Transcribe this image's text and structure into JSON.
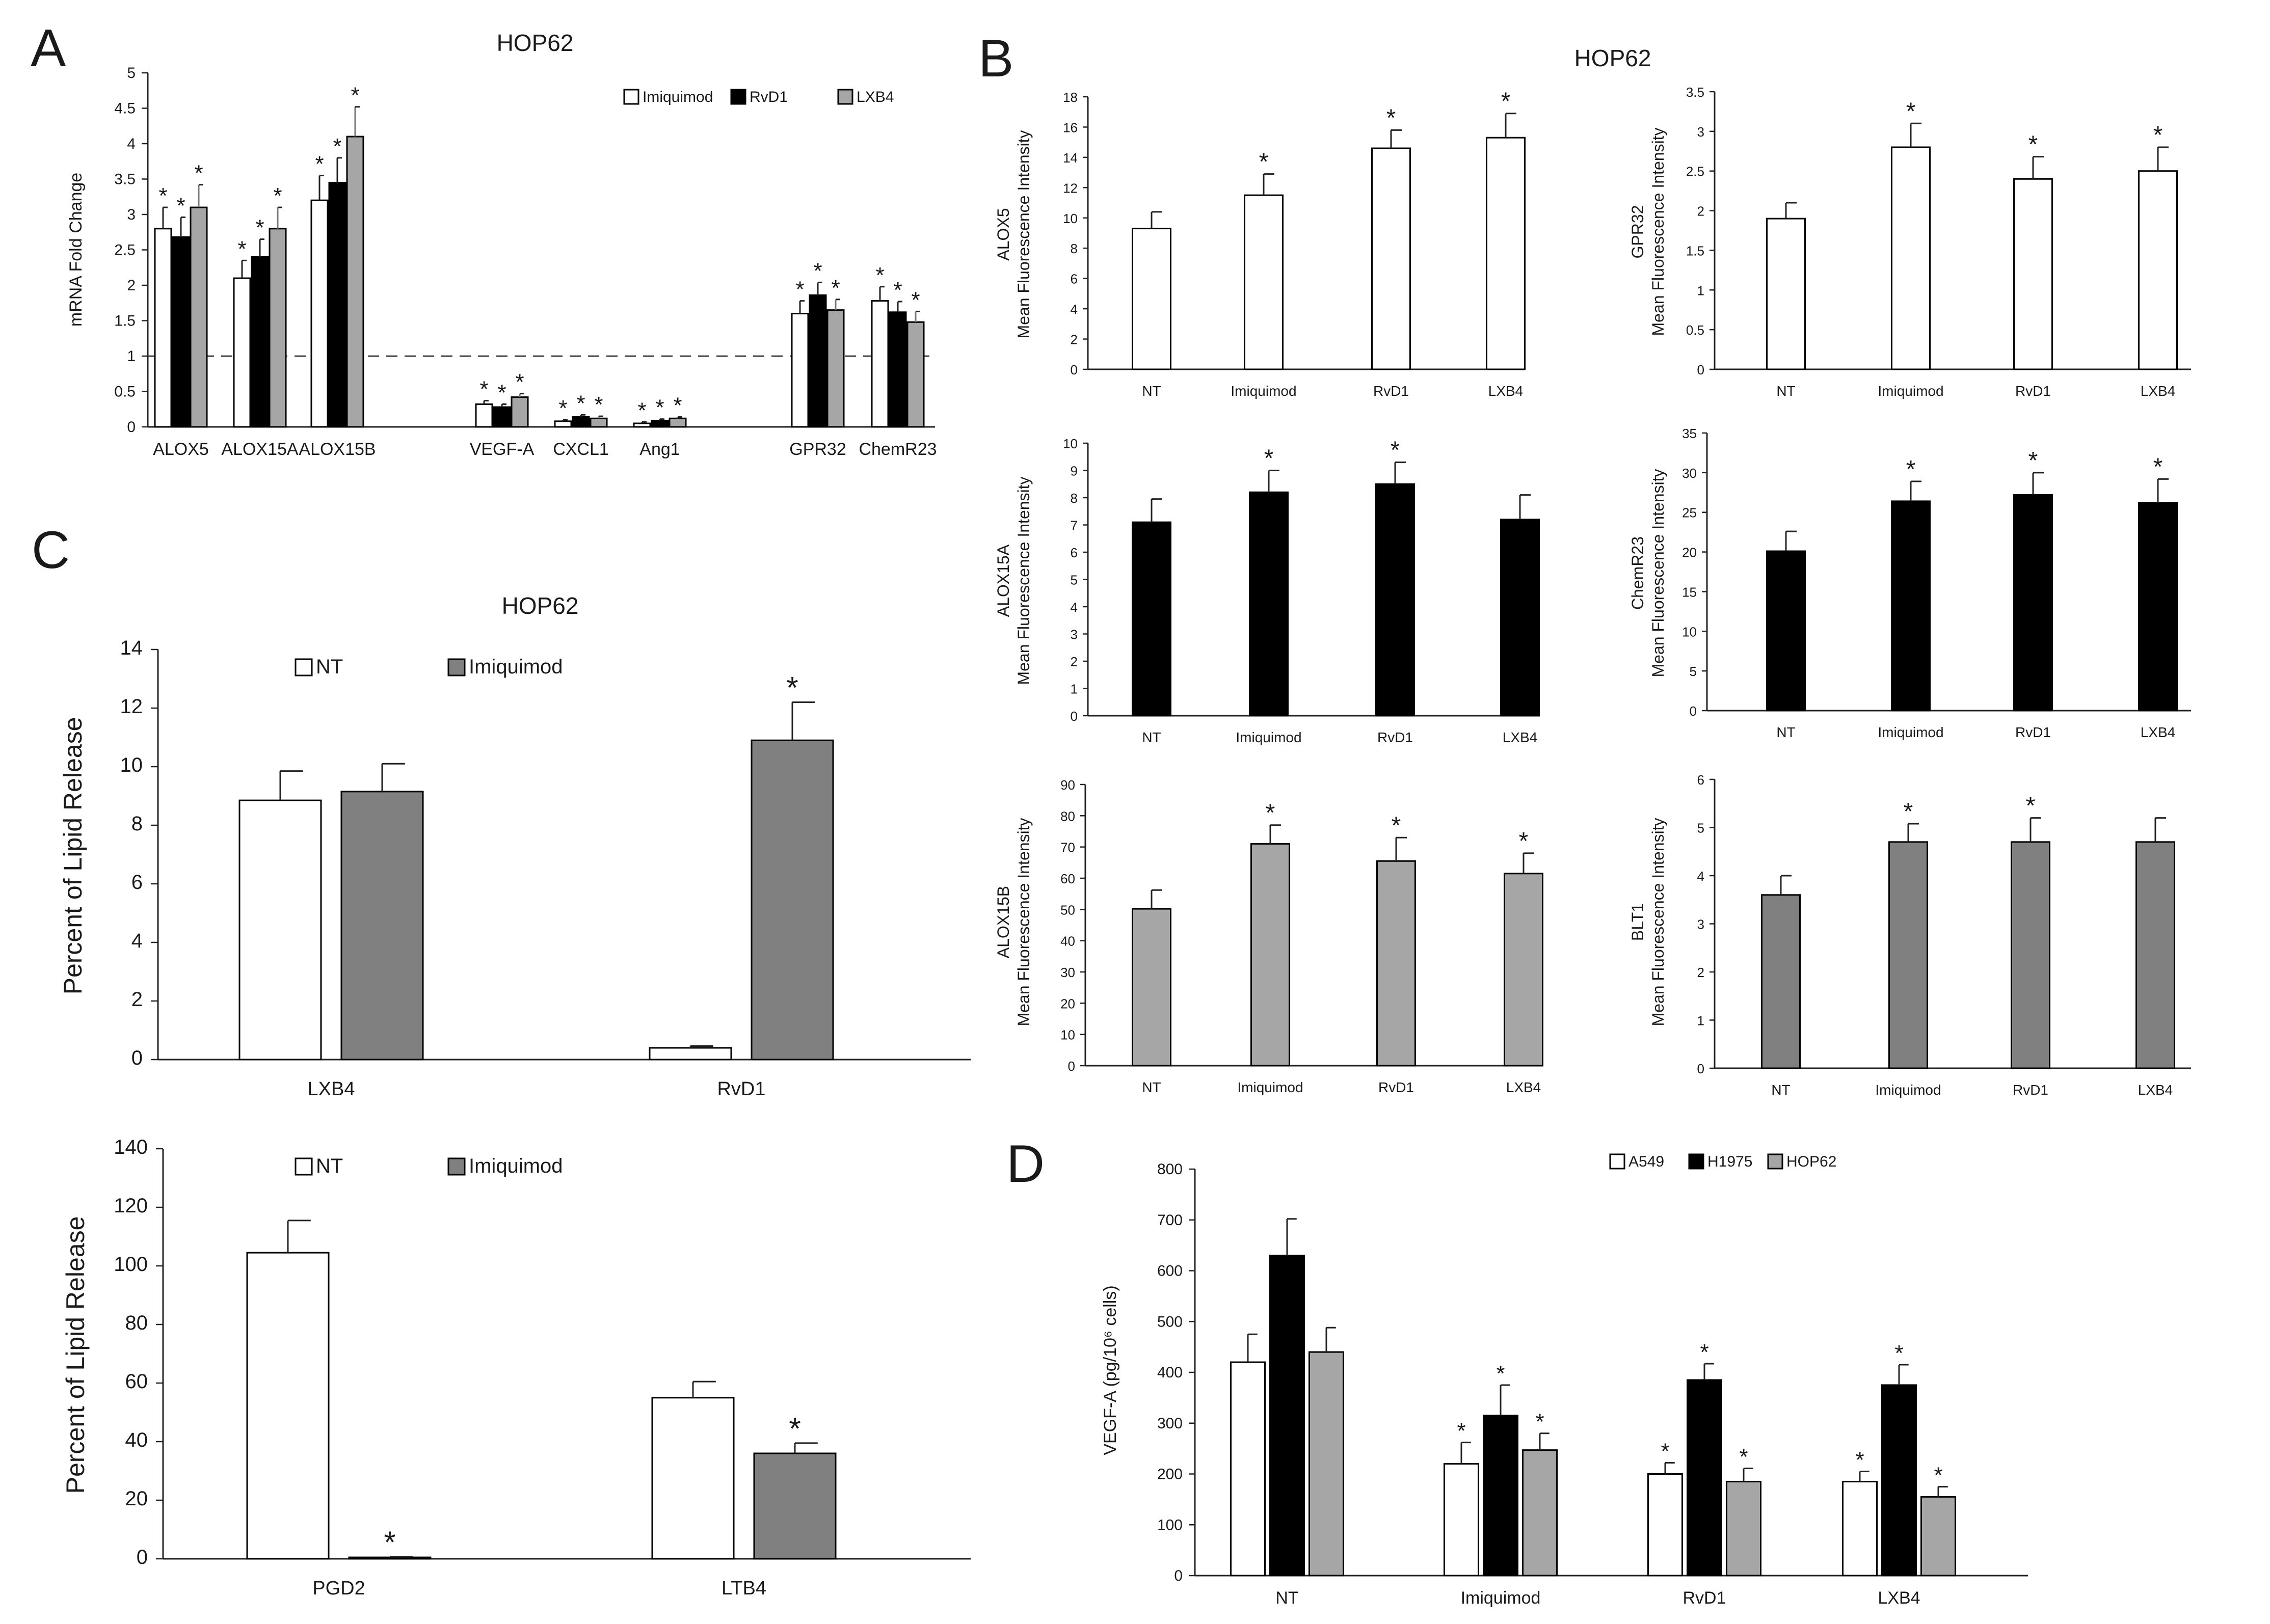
{
  "panels": {
    "A": "A",
    "B": "B",
    "C": "C",
    "D": "D"
  },
  "colors": {
    "white": "#ffffff",
    "black": "#000000",
    "lightgray": "#a6a6a6",
    "darkgray": "#808080"
  },
  "chart_data": [
    {
      "id": "A",
      "type": "bar",
      "title": "HOP62",
      "ylabel": "mRNA Fold Change",
      "xlabel": "",
      "ylim": [
        0,
        5
      ],
      "yticks": [
        "0",
        "0.5",
        "1",
        "1.5",
        "2",
        "2.5",
        "3",
        "3.5",
        "4",
        "4.5",
        "5"
      ],
      "reference_line": 1,
      "categories": [
        "ALOX5",
        "ALOX15A",
        "ALOX15B",
        "VEGF-A",
        "CXCL1",
        "Ang1",
        "GPR32",
        "ChemR23"
      ],
      "series": [
        {
          "name": "Imiquimod",
          "color": "white",
          "values": [
            2.8,
            2.1,
            3.2,
            0.32,
            0.08,
            0.05,
            1.6,
            1.78
          ],
          "errors": [
            0.3,
            0.25,
            0.35,
            0.05,
            0.02,
            0.02,
            0.18,
            0.2
          ],
          "sig": [
            true,
            true,
            true,
            true,
            true,
            true,
            true,
            true
          ]
        },
        {
          "name": "RvD1",
          "color": "black",
          "values": [
            2.68,
            2.4,
            3.45,
            0.28,
            0.14,
            0.09,
            1.86,
            1.62
          ],
          "errors": [
            0.28,
            0.25,
            0.35,
            0.04,
            0.03,
            0.02,
            0.18,
            0.15
          ],
          "sig": [
            true,
            true,
            true,
            true,
            true,
            true,
            true,
            true
          ]
        },
        {
          "name": "LXB4",
          "color": "lightgray",
          "values": [
            3.1,
            2.8,
            4.1,
            0.42,
            0.12,
            0.12,
            1.65,
            1.48
          ],
          "errors": [
            0.32,
            0.3,
            0.42,
            0.05,
            0.03,
            0.02,
            0.15,
            0.15
          ],
          "sig": [
            true,
            true,
            true,
            true,
            true,
            true,
            true,
            true
          ]
        }
      ]
    },
    {
      "id": "C1",
      "type": "bar",
      "title": "HOP62",
      "ylabel": "Percent of Lipid Release",
      "xlabel": "",
      "ylim": [
        0,
        14
      ],
      "yticks": [
        "0",
        "2",
        "4",
        "6",
        "8",
        "10",
        "12",
        "14"
      ],
      "categories": [
        "LXB4",
        "RvD1"
      ],
      "series": [
        {
          "name": "NT",
          "color": "white",
          "values": [
            8.85,
            0.4
          ],
          "errors": [
            1.0,
            0.06
          ],
          "sig": [
            false,
            false
          ]
        },
        {
          "name": "Imiquimod",
          "color": "darkgray",
          "values": [
            9.15,
            10.9
          ],
          "errors": [
            0.95,
            1.3
          ],
          "sig": [
            false,
            true
          ]
        }
      ]
    },
    {
      "id": "C2",
      "type": "bar",
      "title": "",
      "ylabel": "Percent of Lipid Release",
      "xlabel": "",
      "ylim": [
        0,
        140
      ],
      "yticks": [
        "0",
        "20",
        "40",
        "60",
        "80",
        "100",
        "120",
        "140"
      ],
      "categories": [
        "PGD2",
        "LTB4"
      ],
      "series": [
        {
          "name": "NT",
          "color": "white",
          "values": [
            104.5,
            55
          ],
          "errors": [
            11,
            5.5
          ],
          "sig": [
            false,
            false
          ]
        },
        {
          "name": "Imiquimod",
          "color": "darkgray",
          "values": [
            0.5,
            36
          ],
          "errors": [
            0.2,
            3.5
          ],
          "sig": [
            true,
            true
          ]
        }
      ]
    },
    {
      "id": "B1",
      "type": "bar",
      "title": "HOP62",
      "ylabel": [
        "ALOX5",
        "Mean Fluorescence Intensity"
      ],
      "xlabel": "",
      "ylim": [
        0,
        18
      ],
      "yticks": [
        "0",
        "2",
        "4",
        "6",
        "8",
        "10",
        "12",
        "14",
        "16",
        "18"
      ],
      "categories": [
        "NT",
        "Imiquimod",
        "RvD1",
        "LXB4"
      ],
      "series": [
        {
          "name": "ALOX5",
          "color": "white",
          "values": [
            9.3,
            11.5,
            14.6,
            15.3
          ],
          "errors": [
            1.1,
            1.4,
            1.2,
            1.6
          ],
          "sig": [
            false,
            true,
            true,
            true
          ]
        }
      ]
    },
    {
      "id": "B2",
      "type": "bar",
      "title": "",
      "ylabel": [
        "GPR32",
        "Mean Fluorescence Intensity"
      ],
      "xlabel": "",
      "ylim": [
        0,
        3.5
      ],
      "yticks": [
        "0",
        "0.5",
        "1",
        "1.5",
        "2",
        "2.5",
        "3",
        "3.5"
      ],
      "categories": [
        "NT",
        "Imiquimod",
        "RvD1",
        "LXB4"
      ],
      "series": [
        {
          "name": "GPR32",
          "color": "white",
          "values": [
            1.9,
            2.8,
            2.4,
            2.5
          ],
          "errors": [
            0.2,
            0.3,
            0.28,
            0.3
          ],
          "sig": [
            false,
            true,
            true,
            true
          ]
        }
      ]
    },
    {
      "id": "B3",
      "type": "bar",
      "title": "",
      "ylabel": [
        "ALOX15A",
        "Mean Fluorescence Intensity"
      ],
      "xlabel": "",
      "ylim": [
        0,
        10
      ],
      "yticks": [
        "0",
        "1",
        "2",
        "3",
        "4",
        "5",
        "6",
        "7",
        "8",
        "9",
        "10"
      ],
      "categories": [
        "NT",
        "Imiquimod",
        "RvD1",
        "LXB4"
      ],
      "series": [
        {
          "name": "ALOX15A",
          "color": "black",
          "values": [
            7.1,
            8.2,
            8.5,
            7.2
          ],
          "errors": [
            0.85,
            0.8,
            0.8,
            0.9
          ],
          "sig": [
            false,
            true,
            true,
            false
          ]
        }
      ]
    },
    {
      "id": "B4",
      "type": "bar",
      "title": "",
      "ylabel": [
        "ChemR23",
        "Mean Fluorescence Intensity"
      ],
      "xlabel": "",
      "ylim": [
        0,
        35
      ],
      "yticks": [
        "0",
        "5",
        "10",
        "15",
        "20",
        "25",
        "30",
        "35"
      ],
      "categories": [
        "NT",
        "Imiquimod",
        "RvD1",
        "LXB4"
      ],
      "series": [
        {
          "name": "ChemR23",
          "color": "black",
          "values": [
            20.1,
            26.4,
            27.2,
            26.2
          ],
          "errors": [
            2.5,
            2.5,
            2.8,
            3.0
          ],
          "sig": [
            false,
            true,
            true,
            true
          ]
        }
      ]
    },
    {
      "id": "B5",
      "type": "bar",
      "title": "",
      "ylabel": [
        "ALOX15B",
        "Mean Fluorescence Intensity"
      ],
      "xlabel": "",
      "ylim": [
        0,
        90
      ],
      "yticks": [
        "0",
        "10",
        "20",
        "30",
        "40",
        "50",
        "60",
        "70",
        "80",
        "90"
      ],
      "categories": [
        "NT",
        "Imiquimod",
        "RvD1",
        "LXB4"
      ],
      "series": [
        {
          "name": "ALOX15B",
          "color": "lightgray",
          "values": [
            50.2,
            71,
            65.5,
            61.5
          ],
          "errors": [
            6,
            6,
            7.5,
            6.5
          ],
          "sig": [
            false,
            true,
            true,
            true
          ]
        }
      ]
    },
    {
      "id": "B6",
      "type": "bar",
      "title": "",
      "ylabel": [
        "BLT1",
        "Mean Fluorescence Intensity"
      ],
      "xlabel": "",
      "ylim": [
        0,
        6
      ],
      "yticks": [
        "0",
        "1",
        "2",
        "3",
        "4",
        "5",
        "6"
      ],
      "categories": [
        "NT",
        "Imiquimod",
        "RvD1",
        "LXB4"
      ],
      "series": [
        {
          "name": "BLT1",
          "color": "darkgray",
          "values": [
            3.6,
            4.7,
            4.7,
            4.7
          ],
          "errors": [
            0.4,
            0.38,
            0.5,
            0.5
          ],
          "sig": [
            false,
            true,
            true,
            false
          ]
        }
      ]
    },
    {
      "id": "D",
      "type": "bar",
      "title": "",
      "ylabel": "VEGF-A (pg/10⁶ cells)",
      "xlabel": "",
      "ylim": [
        0,
        800
      ],
      "yticks": [
        "0",
        "100",
        "200",
        "300",
        "400",
        "500",
        "600",
        "700",
        "800"
      ],
      "categories": [
        "NT",
        "Imiquimod",
        "RvD1",
        "LXB4"
      ],
      "series": [
        {
          "name": "A549",
          "color": "white",
          "values": [
            420,
            220,
            200,
            185
          ],
          "errors": [
            55,
            42,
            22,
            20
          ],
          "sig": [
            false,
            true,
            true,
            true
          ]
        },
        {
          "name": "H1975",
          "color": "black",
          "values": [
            630,
            315,
            385,
            375
          ],
          "errors": [
            72,
            60,
            32,
            40
          ],
          "sig": [
            false,
            true,
            true,
            true
          ]
        },
        {
          "name": "HOP62",
          "color": "lightgray",
          "values": [
            440,
            247,
            185,
            155
          ],
          "errors": [
            48,
            33,
            26,
            20
          ],
          "sig": [
            false,
            true,
            true,
            true
          ]
        }
      ]
    }
  ]
}
